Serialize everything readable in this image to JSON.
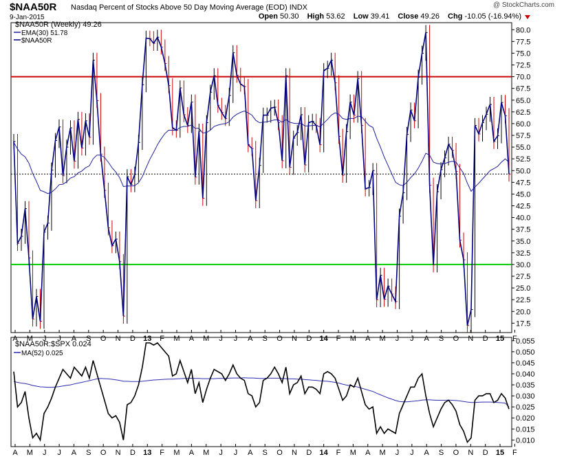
{
  "header": {
    "symbol": "$NAA50R",
    "description": "Nasdaq Percent of Stocks Above 50 Day Moving Average (EOD)  INDX",
    "date": "9-Jan-2015",
    "copyright": "@ StockCharts.com",
    "open_label": "Open",
    "open_value": "50.30",
    "high_label": "High",
    "high_value": "53.62",
    "low_label": "Low",
    "low_value": "39.41",
    "close_label": "Close",
    "close_value": "49.26",
    "chg_label": "Chg",
    "chg_value": "-10.05 (-16.94%)"
  },
  "colors": {
    "price": "#000080",
    "ema": "#1f1f9e",
    "upper_line": "#cc0000",
    "lower_line": "#00cc00",
    "ratio": "#000000",
    "ma": "#2b2bb0",
    "up_bar": "#000000",
    "down_bar": "#cc0000"
  },
  "chart_data": [
    {
      "type": "line",
      "legend_title": "$NAA50R (Weekly) 49.26",
      "legend_position": "top-left",
      "grid": false,
      "x_ticks": [
        "A",
        "M",
        "J",
        "J",
        "A",
        "S",
        "O",
        "N",
        "D",
        "13",
        "F",
        "M",
        "A",
        "M",
        "J",
        "J",
        "A",
        "S",
        "O",
        "N",
        "D",
        "14",
        "F",
        "M",
        "A",
        "M",
        "J",
        "J",
        "A",
        "S",
        "O",
        "N",
        "D",
        "15",
        "F"
      ],
      "ylim": [
        15.5,
        81.5
      ],
      "y_ticks": [
        "17.5",
        "20.0",
        "22.5",
        "25.0",
        "27.5",
        "30.0",
        "32.5",
        "35.0",
        "37.5",
        "40.0",
        "42.5",
        "45.0",
        "47.5",
        "50.0",
        "52.5",
        "55.0",
        "57.5",
        "60.0",
        "62.5",
        "65.0",
        "67.5",
        "70.0",
        "72.5",
        "75.0",
        "77.5",
        "80.0"
      ],
      "reference_lines": [
        70,
        30
      ],
      "dotted_level": 49.26,
      "series": [
        {
          "name": "$NAA50R",
          "values": [
            56.2,
            34.5,
            36,
            41.9,
            31.4,
            18.4,
            23.2,
            17.9,
            36.9,
            38.8,
            50.1,
            56.4,
            59.3,
            48.9,
            55,
            59.1,
            52,
            60.9,
            54.8,
            60.6,
            57.1,
            73.5,
            64.9,
            53.5,
            45.8,
            37.8,
            34,
            35.4,
            30.6,
            19,
            48.7,
            47,
            49.2,
            56,
            68.3,
            78.2,
            78.1,
            77.1,
            78.4,
            76.3,
            72.8,
            68.1,
            59.1,
            58.6,
            67.6,
            61.9,
            59.6,
            64.6,
            48.6,
            58.4,
            44.1,
            60.2,
            66.7,
            70.2,
            63.9,
            62.4,
            61.1,
            66,
            75.1,
            70.3,
            68.4,
            67.9,
            55.5,
            54.7,
            43.6,
            51.1,
            61.8,
            61.8,
            63.3,
            63.5,
            60.2,
            52.1,
            70.2,
            50.7,
            56.9,
            58.1,
            61.9,
            51.2,
            60.2,
            60.5,
            59.6,
            55.5,
            71.3,
            71.8,
            73.5,
            68.7,
            57.3,
            49,
            58.3,
            64.6,
            61.8,
            69.6,
            59.6,
            46.1,
            46.4,
            50,
            22.5,
            27.7,
            22.6,
            25.4,
            23.7,
            22.1,
            40.3,
            45.3,
            57.7,
            62.9,
            60.6,
            69.9,
            75,
            79.4,
            46.9,
            29.9,
            45.5,
            50.2,
            52.7,
            55.6,
            54.3,
            49.8,
            35.2,
            31,
            17,
            20.4,
            59.6,
            57.8,
            60.2,
            62,
            64.1,
            56.2,
            57.4,
            64.5,
            61.7,
            49.26
          ]
        },
        {
          "name": "EMA(30)",
          "legend_label": "EMA(30) 51.78",
          "values": [
            56,
            54.6,
            53.5,
            52.9,
            51.6,
            49.4,
            47.7,
            45.8,
            45.5,
            45.1,
            45.4,
            46.1,
            47,
            47.1,
            47.6,
            48.4,
            48.7,
            49.5,
            49.9,
            50.6,
            51,
            52.5,
            53.3,
            53.3,
            52.8,
            51.8,
            50.6,
            49.7,
            48.5,
            46.6,
            46.7,
            46.7,
            46.8,
            47.4,
            48.7,
            50.6,
            52.4,
            53.9,
            55.5,
            56.8,
            57.9,
            58.6,
            58.6,
            58.6,
            59.2,
            59.4,
            59.4,
            59.7,
            59,
            59,
            58,
            58.1,
            58.6,
            59.4,
            59.7,
            59.9,
            60,
            60.4,
            61.4,
            62,
            62.4,
            62.7,
            62.3,
            61.8,
            60.7,
            60.2,
            60.3,
            60.4,
            60.6,
            60.8,
            60.8,
            60.3,
            60.9,
            60.3,
            60.1,
            60,
            60.1,
            59.5,
            59.5,
            59.6,
            59.6,
            59.3,
            60.1,
            60.9,
            61.8,
            62.3,
            62,
            61.1,
            60.9,
            61.1,
            61.1,
            61.6,
            61.5,
            60.5,
            59.6,
            59.2,
            56.9,
            55,
            52.9,
            51.1,
            49.3,
            47.5,
            47,
            46.8,
            47.5,
            48.5,
            49.3,
            50.5,
            52,
            53.7,
            53.3,
            51.8,
            51.5,
            51.4,
            51.5,
            51.8,
            52,
            51.8,
            50.6,
            49.4,
            47.3,
            45.6,
            46.5,
            47.3,
            48.2,
            49.1,
            50,
            50.4,
            50.9,
            51.8,
            52.5,
            51.78
          ]
        }
      ]
    },
    {
      "type": "line",
      "legend_title": "$NAA50R:$SPX 0.024",
      "legend_position": "top-left",
      "grid": false,
      "x_ticks": [
        "A",
        "M",
        "J",
        "J",
        "A",
        "S",
        "O",
        "N",
        "D",
        "13",
        "F",
        "M",
        "A",
        "M",
        "J",
        "J",
        "A",
        "S",
        "O",
        "N",
        "D",
        "14",
        "F",
        "M",
        "A",
        "M",
        "J",
        "J",
        "A",
        "S",
        "O",
        "N",
        "D",
        "15",
        "F"
      ],
      "ylim": [
        0.007,
        0.0565
      ],
      "y_ticks": [
        "0.010",
        "0.015",
        "0.020",
        "0.025",
        "0.030",
        "0.035",
        "0.040",
        "0.045",
        "0.050",
        "0.055"
      ],
      "series": [
        {
          "name": "$NAA50R:$SPX",
          "values": [
            0.041,
            0.025,
            0.027,
            0.032,
            0.02,
            0.011,
            0.013,
            0.01,
            0.022,
            0.025,
            0.029,
            0.034,
            0.038,
            0.042,
            0.04,
            0.038,
            0.043,
            0.041,
            0.039,
            0.043,
            0.038,
            0.046,
            0.04,
            0.034,
            0.028,
            0.022,
            0.02,
            0.021,
            0.018,
            0.01,
            0.026,
            0.027,
            0.03,
            0.035,
            0.043,
            0.054,
            0.054,
            0.053,
            0.054,
            0.052,
            0.05,
            0.048,
            0.039,
            0.04,
            0.046,
            0.041,
            0.036,
            0.042,
            0.031,
            0.036,
            0.027,
            0.033,
            0.038,
            0.042,
            0.041,
            0.04,
            0.037,
            0.04,
            0.044,
            0.04,
            0.038,
            0.037,
            0.031,
            0.03,
            0.025,
            0.027,
            0.037,
            0.038,
            0.04,
            0.043,
            0.04,
            0.036,
            0.043,
            0.031,
            0.035,
            0.036,
            0.039,
            0.031,
            0.034,
            0.034,
            0.033,
            0.031,
            0.04,
            0.041,
            0.04,
            0.038,
            0.033,
            0.028,
            0.03,
            0.035,
            0.034,
            0.038,
            0.032,
            0.026,
            0.024,
            0.025,
            0.013,
            0.016,
            0.013,
            0.015,
            0.014,
            0.013,
            0.022,
            0.026,
            0.03,
            0.034,
            0.034,
            0.038,
            0.04,
            0.03,
            0.022,
            0.016,
            0.02,
            0.024,
            0.027,
            0.028,
            0.026,
            0.023,
            0.017,
            0.014,
            0.009,
            0.011,
            0.028,
            0.03,
            0.03,
            0.031,
            0.031,
            0.027,
            0.028,
            0.031,
            0.029,
            0.024
          ]
        },
        {
          "name": "MA(52)",
          "legend_label": "MA(52) 0.025",
          "values": [
            0.0365,
            0.0361,
            0.0358,
            0.0356,
            0.0352,
            0.0347,
            0.0344,
            0.0341,
            0.034,
            0.0339,
            0.0339,
            0.034,
            0.0342,
            0.0345,
            0.0348,
            0.035,
            0.0354,
            0.0358,
            0.0361,
            0.0365,
            0.0369,
            0.0373,
            0.0377,
            0.0379,
            0.0378,
            0.0377,
            0.0375,
            0.0373,
            0.037,
            0.0366,
            0.0366,
            0.0365,
            0.0365,
            0.0365,
            0.0366,
            0.0368,
            0.037,
            0.0372,
            0.0373,
            0.0374,
            0.0375,
            0.0376,
            0.0376,
            0.0377,
            0.0378,
            0.0379,
            0.0379,
            0.038,
            0.0379,
            0.0379,
            0.0378,
            0.0378,
            0.0378,
            0.0378,
            0.0379,
            0.0379,
            0.0379,
            0.038,
            0.0381,
            0.0381,
            0.0381,
            0.0382,
            0.0381,
            0.0381,
            0.038,
            0.0379,
            0.0379,
            0.038,
            0.038,
            0.038,
            0.038,
            0.0379,
            0.0378,
            0.0377,
            0.0377,
            0.0376,
            0.0376,
            0.0374,
            0.0373,
            0.0371,
            0.037,
            0.0368,
            0.0367,
            0.0366,
            0.0364,
            0.0361,
            0.0358,
            0.0353,
            0.0349,
            0.0346,
            0.0343,
            0.034,
            0.0335,
            0.033,
            0.0325,
            0.032,
            0.0312,
            0.0305,
            0.0298,
            0.0291,
            0.0285,
            0.0279,
            0.0275,
            0.0273,
            0.0273,
            0.0275,
            0.0276,
            0.0278,
            0.0281,
            0.0282,
            0.0282,
            0.0281,
            0.028,
            0.028,
            0.028,
            0.0281,
            0.028,
            0.0279,
            0.0277,
            0.0275,
            0.0272,
            0.027,
            0.027,
            0.0271,
            0.0272,
            0.0272,
            0.0272,
            0.0271,
            0.027,
            0.0269,
            0.0267,
            0.025
          ]
        }
      ]
    }
  ]
}
